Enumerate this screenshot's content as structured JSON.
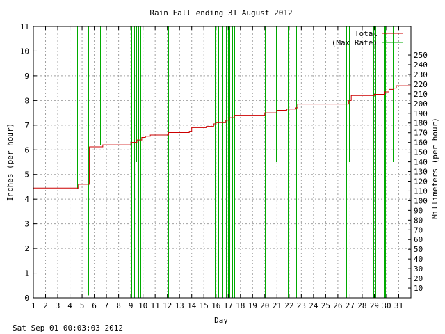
{
  "footer": {
    "timestamp": "Sat Sep 01 00:03:03 2012"
  },
  "colors": {
    "total": "#cc0000",
    "max_rate": "#00aa00",
    "grid": "#a0a0a0",
    "axis": "#000000"
  },
  "chart_data": {
    "type": "line",
    "title": "Rain Fall ending 31 August 2012",
    "xlabel": "Day",
    "ylabel": "Inches (per hour)",
    "y2label": "Millimeters (per hour)",
    "xlim": [
      1,
      32
    ],
    "ylim": [
      0,
      11
    ],
    "y2lim": [
      0,
      279.4
    ],
    "grid": true,
    "legend_position": "top-right",
    "x_ticks": [
      1,
      2,
      3,
      4,
      5,
      6,
      7,
      8,
      9,
      10,
      11,
      12,
      13,
      14,
      15,
      16,
      17,
      18,
      19,
      20,
      21,
      22,
      23,
      24,
      25,
      26,
      27,
      28,
      29,
      30,
      31
    ],
    "y_ticks": [
      0,
      1,
      2,
      3,
      4,
      5,
      6,
      7,
      8,
      9,
      10,
      11
    ],
    "y2_ticks": [
      10,
      20,
      30,
      40,
      50,
      60,
      70,
      80,
      90,
      100,
      110,
      120,
      130,
      140,
      150,
      160,
      170,
      180,
      190,
      200,
      210,
      220,
      230,
      240,
      250
    ],
    "series": [
      {
        "name": "Total",
        "color": "#cc0000",
        "style": "step",
        "points": [
          [
            1.0,
            4.45
          ],
          [
            4.6,
            4.45
          ],
          [
            4.7,
            4.6
          ],
          [
            5.6,
            4.6
          ],
          [
            5.6,
            5.05
          ],
          [
            5.6,
            6.12
          ],
          [
            6.6,
            6.12
          ],
          [
            6.7,
            6.2
          ],
          [
            9.0,
            6.2
          ],
          [
            9.0,
            6.3
          ],
          [
            9.5,
            6.4
          ],
          [
            9.9,
            6.5
          ],
          [
            10.2,
            6.55
          ],
          [
            10.6,
            6.6
          ],
          [
            12.0,
            6.6
          ],
          [
            12.1,
            6.7
          ],
          [
            13.8,
            6.75
          ],
          [
            14.0,
            6.9
          ],
          [
            15.0,
            6.9
          ],
          [
            15.2,
            6.95
          ],
          [
            15.8,
            7.05
          ],
          [
            16.0,
            7.1
          ],
          [
            16.8,
            7.2
          ],
          [
            17.1,
            7.3
          ],
          [
            17.5,
            7.4
          ],
          [
            20.0,
            7.4
          ],
          [
            20.0,
            7.5
          ],
          [
            21.0,
            7.5
          ],
          [
            21.0,
            7.6
          ],
          [
            21.8,
            7.65
          ],
          [
            22.5,
            7.7
          ],
          [
            22.7,
            7.85
          ],
          [
            26.7,
            7.85
          ],
          [
            26.9,
            8.0
          ],
          [
            27.1,
            8.2
          ],
          [
            29.0,
            8.2
          ],
          [
            29.0,
            8.25
          ],
          [
            29.8,
            8.35
          ],
          [
            30.2,
            8.45
          ],
          [
            30.6,
            8.5
          ],
          [
            30.8,
            8.6
          ],
          [
            32.0,
            8.6
          ]
        ]
      },
      {
        "name": "(Max Rate)",
        "color": "#00aa00",
        "style": "spikes",
        "spikes": [
          [
            4.6,
            4.4,
            11
          ],
          [
            4.72,
            5.5,
            11
          ],
          [
            5.5,
            0.1,
            11
          ],
          [
            5.6,
            0.0,
            11
          ],
          [
            6.5,
            6.2,
            11
          ],
          [
            6.6,
            0.0,
            11
          ],
          [
            9.0,
            0.0,
            5.5
          ],
          [
            9.05,
            0.0,
            11
          ],
          [
            9.3,
            0.0,
            11
          ],
          [
            9.45,
            5.5,
            11
          ],
          [
            9.6,
            0.0,
            11
          ],
          [
            9.8,
            0.0,
            11
          ],
          [
            9.95,
            0.0,
            11
          ],
          [
            10.15,
            0.0,
            11
          ],
          [
            12.0,
            0.0,
            11
          ],
          [
            12.1,
            0.0,
            11
          ],
          [
            15.0,
            0.0,
            11
          ],
          [
            15.2,
            0.0,
            11
          ],
          [
            15.9,
            0.0,
            11
          ],
          [
            16.2,
            0.0,
            11
          ],
          [
            16.5,
            0.0,
            11
          ],
          [
            16.7,
            0.0,
            11
          ],
          [
            16.8,
            0.0,
            11
          ],
          [
            17.0,
            0.0,
            11
          ],
          [
            17.1,
            0.0,
            11
          ],
          [
            17.3,
            0.0,
            11
          ],
          [
            17.5,
            0.0,
            11
          ],
          [
            19.9,
            0.0,
            11
          ],
          [
            20.0,
            0.0,
            11
          ],
          [
            20.9,
            5.5,
            11
          ],
          [
            21.0,
            0.0,
            11
          ],
          [
            21.7,
            0.0,
            11
          ],
          [
            21.9,
            0.0,
            11
          ],
          [
            22.6,
            0.0,
            11
          ],
          [
            22.7,
            5.5,
            11
          ],
          [
            26.7,
            0.0,
            11
          ],
          [
            26.9,
            5.5,
            11
          ],
          [
            27.0,
            0.0,
            11
          ],
          [
            27.2,
            0.0,
            11
          ],
          [
            28.9,
            0.0,
            11
          ],
          [
            29.1,
            0.0,
            11
          ],
          [
            29.6,
            0.0,
            11
          ],
          [
            29.8,
            0.0,
            11
          ],
          [
            29.9,
            0.0,
            11
          ],
          [
            30.0,
            0.0,
            11
          ],
          [
            30.5,
            5.5,
            11
          ],
          [
            30.9,
            0.0,
            11
          ],
          [
            31.1,
            0.0,
            11
          ]
        ]
      }
    ]
  }
}
